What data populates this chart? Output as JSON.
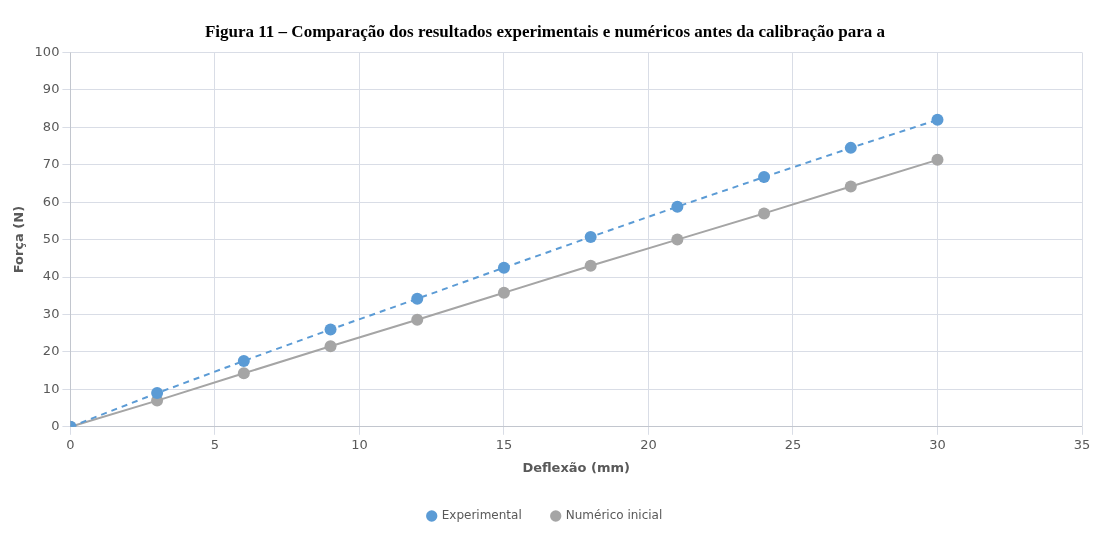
{
  "chart_data": {
    "type": "line",
    "title": "Figura 11 – Comparação dos resultados experimentais e numéricos antes da calibração para a",
    "xlabel": "Deflexão (mm)",
    "ylabel": "Força (N)",
    "x": [
      0,
      3,
      6,
      9,
      12,
      15,
      18,
      21,
      24,
      27,
      30
    ],
    "series": [
      {
        "name": "Experimental",
        "color": "#5b9bd5",
        "line_style": "dashed",
        "values": [
          0,
          9,
          17.6,
          26,
          34.2,
          42.5,
          50.7,
          58.8,
          66.7,
          74.5,
          82
        ]
      },
      {
        "name": "Numérico inicial",
        "color": "#a5a5a5",
        "line_style": "solid",
        "values": [
          0,
          7,
          14.3,
          21.5,
          28.6,
          35.8,
          43,
          50,
          57,
          64.2,
          71.3
        ]
      }
    ],
    "xlim": [
      0,
      35
    ],
    "xticks": [
      0,
      5,
      10,
      15,
      20,
      25,
      30,
      35
    ],
    "ylim": [
      0,
      100
    ],
    "yticks": [
      0,
      10,
      20,
      30,
      40,
      50,
      60,
      70,
      80,
      90,
      100
    ],
    "grid": true,
    "legend": "bottom",
    "marker": "circle"
  }
}
